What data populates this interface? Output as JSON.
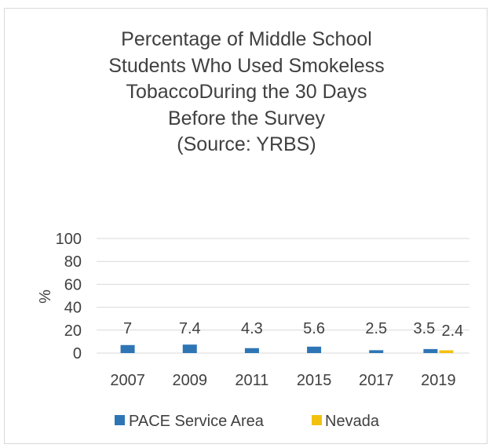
{
  "chart_data": {
    "type": "bar",
    "title_lines": [
      "Percentage of Middle School",
      "Students Who Used Smokeless",
      "TobaccoDuring the 30 Days",
      "Before the Survey",
      "(Source: YRBS)"
    ],
    "ylabel": "%",
    "xlabel": "",
    "ylim": [
      0,
      100
    ],
    "yticks": [
      0,
      20,
      40,
      60,
      80,
      100
    ],
    "categories": [
      "2007",
      "2009",
      "2011",
      "2015",
      "2017",
      "2019"
    ],
    "series": [
      {
        "name": "PACE Service Area",
        "color": "#2e75b6",
        "values": [
          7,
          7.4,
          4.3,
          5.6,
          2.5,
          3.5
        ],
        "labels": [
          "7",
          "7.4",
          "4.3",
          "5.6",
          "2.5",
          "3.5"
        ]
      },
      {
        "name": "Nevada",
        "color": "#f2c10f",
        "values": [
          null,
          null,
          null,
          null,
          null,
          2.4
        ],
        "labels": [
          "",
          "",
          "",
          "",
          "",
          "2.4"
        ]
      }
    ],
    "grid": true,
    "legend_position": "bottom"
  }
}
